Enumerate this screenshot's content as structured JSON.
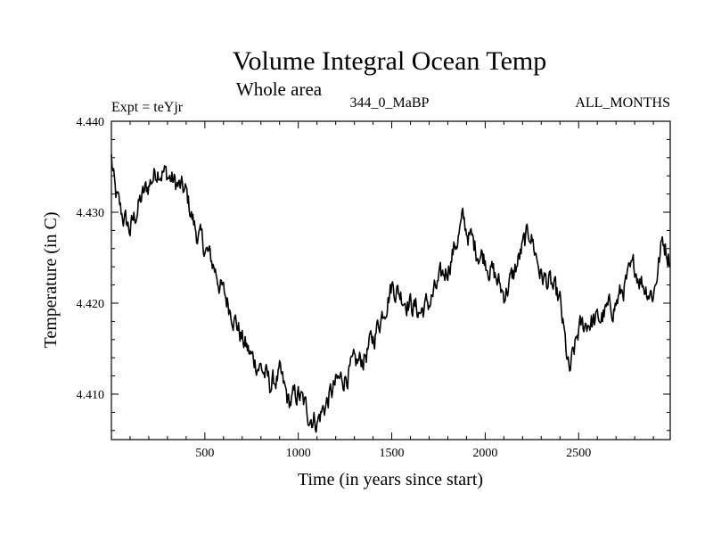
{
  "chart_data": {
    "type": "line",
    "title": "Volume Integral Ocean Temp",
    "subtitle": "Whole area",
    "annotations": {
      "experiment": "Expt = teYjr",
      "period": "344_0_MaBP",
      "months": "ALL_MONTHS"
    },
    "xlabel": "Time (in years since start)",
    "ylabel": "Temperature (in C)",
    "xlim": [
      0,
      2990
    ],
    "ylim": [
      4.405,
      4.44
    ],
    "x_ticks": [
      500,
      1000,
      1500,
      2000,
      2500
    ],
    "x_tick_labels": [
      "500",
      "1000",
      "1500",
      "2000",
      "2500"
    ],
    "y_ticks": [
      4.41,
      4.42,
      4.43,
      4.44
    ],
    "y_tick_labels": [
      "4.410",
      "4.420",
      "4.430",
      "4.440"
    ],
    "grid": false,
    "color": "#000000",
    "series": [
      {
        "name": "Volume Integral Ocean Temp",
        "x": [
          0,
          20,
          50,
          100,
          150,
          200,
          250,
          300,
          350,
          400,
          450,
          500,
          550,
          600,
          650,
          700,
          750,
          800,
          850,
          900,
          950,
          1000,
          1050,
          1100,
          1150,
          1200,
          1250,
          1300,
          1350,
          1400,
          1450,
          1500,
          1550,
          1600,
          1650,
          1700,
          1750,
          1800,
          1850,
          1880,
          1900,
          1950,
          2000,
          2050,
          2100,
          2150,
          2200,
          2240,
          2300,
          2350,
          2400,
          2450,
          2500,
          2550,
          2600,
          2650,
          2700,
          2750,
          2800,
          2850,
          2900,
          2950,
          2990
        ],
        "y": [
          4.436,
          4.432,
          4.43,
          4.428,
          4.431,
          4.433,
          4.435,
          4.434,
          4.433,
          4.432,
          4.428,
          4.426,
          4.424,
          4.421,
          4.419,
          4.416,
          4.414,
          4.413,
          4.411,
          4.412,
          4.409,
          4.41,
          4.408,
          4.407,
          4.409,
          4.411,
          4.412,
          4.413,
          4.414,
          4.416,
          4.419,
          4.422,
          4.421,
          4.42,
          4.419,
          4.42,
          4.422,
          4.424,
          4.427,
          4.429,
          4.428,
          4.426,
          4.425,
          4.423,
          4.421,
          4.423,
          4.426,
          4.428,
          4.423,
          4.422,
          4.42,
          4.412,
          4.417,
          4.418,
          4.418,
          4.419,
          4.42,
          4.422,
          4.424,
          4.422,
          4.421,
          4.427,
          4.425
        ]
      }
    ]
  }
}
